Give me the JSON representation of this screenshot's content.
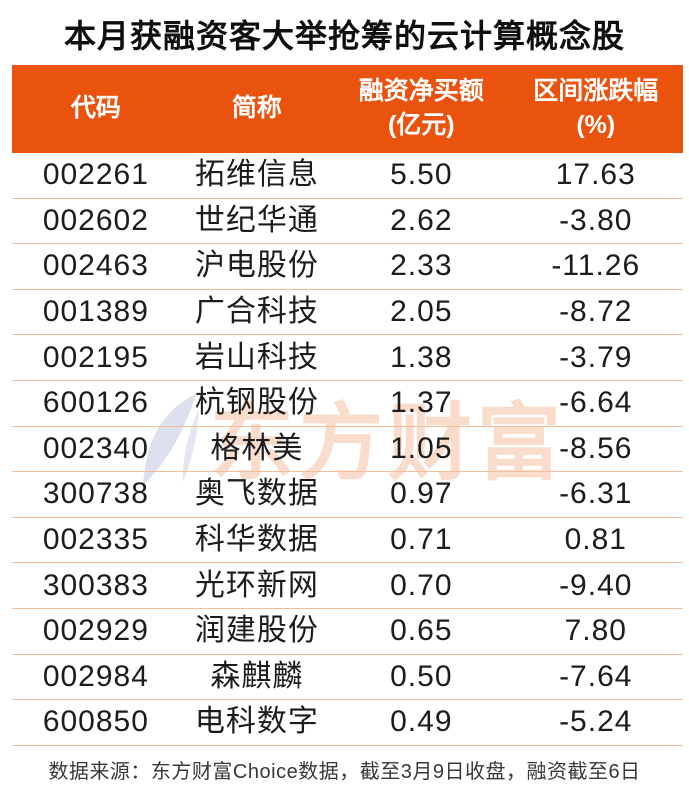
{
  "title": "本月获融资客大举抢筹的云计算概念股",
  "chart_data": {
    "type": "table",
    "title": "本月获融资客大举抢筹的云计算概念股",
    "columns": [
      {
        "label": "代码",
        "sub": ""
      },
      {
        "label": "简称",
        "sub": ""
      },
      {
        "label": "融资净买额",
        "sub": "(亿元)"
      },
      {
        "label": "区间涨跌幅",
        "sub": "(%)"
      }
    ],
    "rows": [
      [
        "002261",
        "拓维信息",
        "5.50",
        "17.63"
      ],
      [
        "002602",
        "世纪华通",
        "2.62",
        "-3.80"
      ],
      [
        "002463",
        "沪电股份",
        "2.33",
        "-11.26"
      ],
      [
        "001389",
        "广合科技",
        "2.05",
        "-8.72"
      ],
      [
        "002195",
        "岩山科技",
        "1.38",
        "-3.79"
      ],
      [
        "600126",
        "杭钢股份",
        "1.37",
        "-6.64"
      ],
      [
        "002340",
        "格林美",
        "1.05",
        "-8.56"
      ],
      [
        "300738",
        "奥飞数据",
        "0.97",
        "-6.31"
      ],
      [
        "002335",
        "科华数据",
        "0.71",
        "0.81"
      ],
      [
        "300383",
        "光环新网",
        "0.70",
        "-9.40"
      ],
      [
        "002929",
        "润建股份",
        "0.65",
        "7.80"
      ],
      [
        "002984",
        "森麒麟",
        "0.50",
        "-7.64"
      ],
      [
        "600850",
        "电科数字",
        "0.49",
        "-5.24"
      ]
    ],
    "source_note": "数据来源：东方财富Choice数据，截至3月9日收盘，融资截至6日"
  },
  "footer": {
    "source_note": "数据来源：东方财富Choice数据，截至3月9日收盘，融资截至6日"
  },
  "watermark": {
    "text": "东方财富",
    "logo_icon": "eastmoney-swoosh-icon"
  },
  "colors": {
    "header_bg": "#e9530e",
    "header_text": "#ffffff",
    "separator": "#f2bd97",
    "title_text": "#0f0f0f",
    "body_text": "#1c1c1c",
    "footer_text": "#383838",
    "watermark_text": "#f9dccb",
    "watermark_logo": "#dde1ef"
  }
}
